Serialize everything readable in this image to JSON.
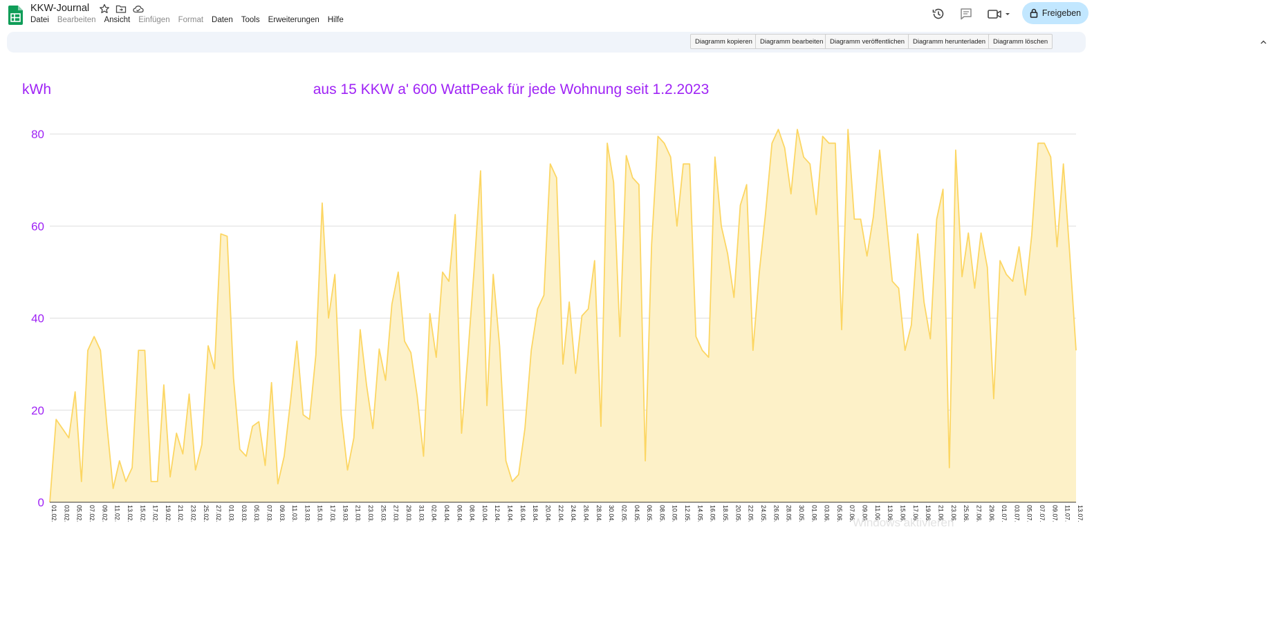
{
  "app": {
    "doc_title": "KKW-Journal",
    "menu": [
      {
        "label": "Datei",
        "enabled": true
      },
      {
        "label": "Bearbeiten",
        "enabled": false
      },
      {
        "label": "Ansicht",
        "enabled": true
      },
      {
        "label": "Einfügen",
        "enabled": false
      },
      {
        "label": "Format",
        "enabled": false
      },
      {
        "label": "Daten",
        "enabled": true
      },
      {
        "label": "Tools",
        "enabled": true
      },
      {
        "label": "Erweiterungen",
        "enabled": true
      },
      {
        "label": "Hilfe",
        "enabled": true
      }
    ],
    "share_label": "Freigeben",
    "colors": {
      "sheets_green": "#0f9d58",
      "share_bg": "#c2e7ff",
      "toolbar_bg": "#f0f4fa"
    }
  },
  "chart_toolbar": {
    "buttons": [
      "Diagramm kopieren",
      "Diagramm bearbeiten",
      "Diagramm veröffentlichen",
      "Diagramm herunterladen",
      "Diagramm löschen"
    ]
  },
  "chart_data": {
    "type": "area",
    "title": "aus 15 KKW a' 600 WattPeak für jede Wohnung seit 1.2.2023",
    "ylabel": "kWh",
    "xlabel": "",
    "ylim": [
      0,
      80
    ],
    "yticks": [
      0,
      20,
      40,
      60,
      80
    ],
    "grid": true,
    "legend": "none",
    "colors": {
      "line": "#fcd663",
      "fill": "#fdf1c8",
      "text": "#9f23f5",
      "grid": "#dddddd",
      "axis": "#333333"
    },
    "x_tick_labels": [
      "01.02.",
      "03.02.",
      "05.02.",
      "07.02.",
      "09.02.",
      "11.02.",
      "13.02.",
      "15.02.",
      "17.02.",
      "19.02.",
      "21.02.",
      "23.02.",
      "25.02.",
      "27.02.",
      "01.03.",
      "03.03.",
      "05.03.",
      "07.03.",
      "09.03.",
      "11.03.",
      "13.03.",
      "15.03.",
      "17.03.",
      "19.03.",
      "21.03.",
      "23.03.",
      "25.03.",
      "27.03.",
      "29.03.",
      "31.03.",
      "02.04.",
      "04.04.",
      "06.04.",
      "08.04.",
      "10.04.",
      "12.04.",
      "14.04.",
      "16.04.",
      "18.04.",
      "20.04.",
      "22.04.",
      "24.04.",
      "26.04.",
      "28.04.",
      "30.04.",
      "02.05.",
      "04.05.",
      "06.05.",
      "08.05.",
      "10.05.",
      "12.05.",
      "14.05.",
      "16.05.",
      "18.05.",
      "20.05.",
      "22.05.",
      "24.05.",
      "26.05.",
      "28.05.",
      "30.05.",
      "01.06.",
      "03.06.",
      "05.06.",
      "07.06.",
      "09.06.",
      "11.06.",
      "13.06.",
      "15.06.",
      "17.06.",
      "19.06.",
      "21.06.",
      "23.06.",
      "25.06.",
      "27.06.",
      "29.06.",
      "01.07.",
      "03.07.",
      "05.07.",
      "07.07.",
      "09.07.",
      "11.07.",
      "13.07."
    ],
    "values": [
      0,
      18,
      16,
      14,
      24,
      4.5,
      33,
      36,
      33,
      17,
      3,
      9,
      4.5,
      7.5,
      33,
      33,
      4.5,
      4.5,
      25.5,
      5.5,
      15,
      10.5,
      23.5,
      7,
      12.5,
      34,
      29,
      58.3,
      57.8,
      27,
      11.5,
      10,
      16.5,
      17.5,
      8,
      26,
      4,
      10,
      22,
      35,
      19,
      18,
      32,
      65,
      40,
      49.5,
      19,
      7,
      14,
      37.5,
      25.5,
      16,
      33.3,
      26.5,
      43,
      50,
      35,
      32.5,
      23,
      10,
      41,
      31.5,
      50,
      48,
      62.5,
      15,
      32,
      51,
      72,
      21,
      49.5,
      34,
      9,
      4.5,
      6,
      16,
      33,
      42,
      45,
      73.5,
      70.5,
      30,
      43.5,
      28,
      40.5,
      42,
      52.5,
      16.5,
      78,
      69.5,
      36,
      75.3,
      70.5,
      69,
      9,
      56,
      79.5,
      78,
      75,
      60,
      73.5,
      73.5,
      36,
      33,
      31.5,
      75,
      60,
      54,
      44.5,
      64.5,
      69,
      33,
      50,
      63,
      78,
      81,
      77,
      67,
      81,
      75,
      73.5,
      62.5,
      79.5,
      78,
      78,
      37.5,
      81,
      61.5,
      61.5,
      53.5,
      62,
      76.5,
      62,
      48,
      46.5,
      33,
      38.5,
      58.3,
      43.5,
      35.5,
      61.5,
      68,
      7.5,
      76.5,
      49,
      58.5,
      46.5,
      58.5,
      51,
      22.5,
      52.5,
      49.5,
      48,
      55.5,
      45,
      58,
      78,
      78,
      75,
      55.5,
      73.5,
      54,
      33
    ]
  },
  "watermark": "Windows aktivieren"
}
